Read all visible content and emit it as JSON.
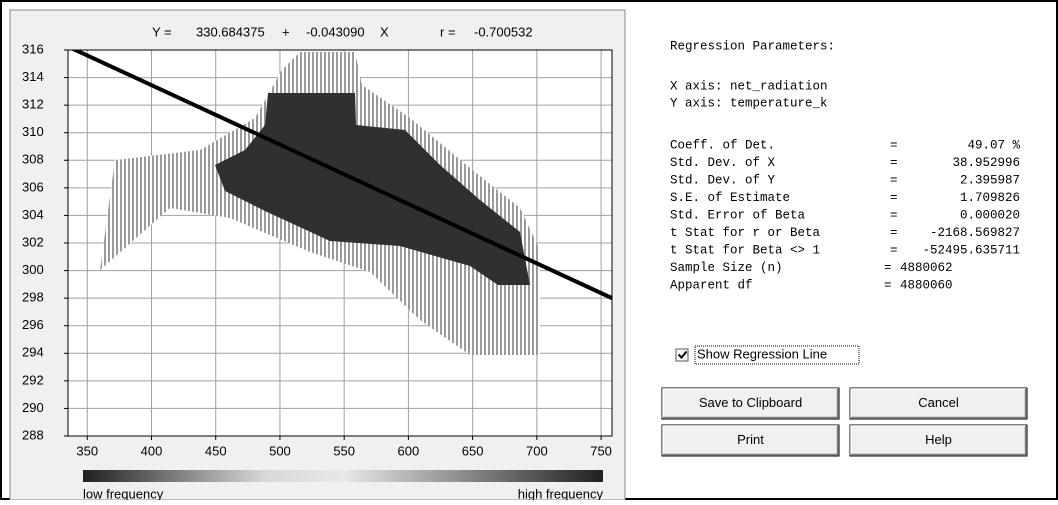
{
  "chart_data": {
    "type": "density",
    "equation": {
      "y_label": "Y =",
      "plus": "+",
      "x_label": "X",
      "r_label": "r ="
    },
    "intercept": 330.684375,
    "slope": {
      "value": -0.04309,
      "label": "-0.043090"
    },
    "r": -0.700532,
    "xlim": [
      335,
      758.5
    ],
    "ylim": [
      288,
      316
    ],
    "xticks": [
      350,
      400,
      450,
      500,
      550,
      600,
      650,
      700,
      750
    ],
    "yticks": [
      288,
      290,
      292,
      294,
      296,
      298,
      300,
      302,
      304,
      306,
      308,
      310,
      312,
      314,
      316
    ],
    "grid": true,
    "line_color": "#000000",
    "legend": {
      "low": "low frequency",
      "high": "high frequency"
    }
  },
  "panel": {
    "title": "Regression Parameters:",
    "x_axis": "X axis: net_radiation",
    "y_axis": "Y axis: temperature_k",
    "equals": "=",
    "stats": [
      {
        "label": "Coeff. of Det.",
        "value": "49.07 %"
      },
      {
        "label": "Std. Dev. of X",
        "value": "38.952996"
      },
      {
        "label": "Std. Dev. of Y",
        "value": "2.395987"
      },
      {
        "label": "S.E. of Estimate",
        "value": "1.709826"
      },
      {
        "label": "Std. Error of Beta",
        "value": "0.000020"
      },
      {
        "label": "t Stat for r or Beta",
        "value": "-2168.569827"
      },
      {
        "label": "t Stat for Beta <> 1",
        "value": "-52495.635711"
      }
    ],
    "counts": [
      {
        "label": "Sample Size (n)",
        "value": "4880062"
      },
      {
        "label": "Apparent df",
        "value": "4880060"
      }
    ],
    "checkbox": "Show Regression Line",
    "buttons": [
      "Save to Clipboard",
      "Cancel",
      "Print",
      "Help"
    ]
  }
}
